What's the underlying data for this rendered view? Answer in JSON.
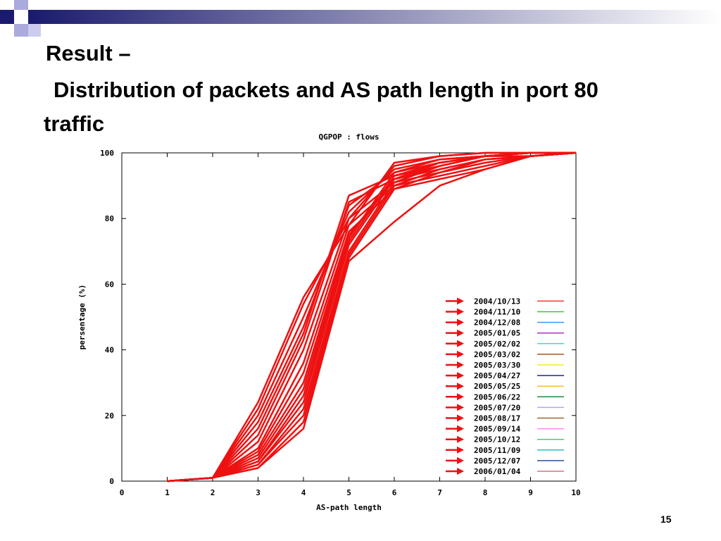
{
  "slide": {
    "title": [
      "Result –",
      "Distribution of packets and AS path length in port 80 traffic"
    ],
    "page_number": "15"
  },
  "chart_data": {
    "type": "line",
    "title": "QGPOP : flows",
    "x_label": "AS-path length",
    "y_label": "persentage (%)",
    "x": [
      1,
      2,
      3,
      4,
      5,
      6,
      7,
      8,
      9,
      10
    ],
    "xlim": [
      0,
      10
    ],
    "xticks": [
      0,
      1,
      2,
      3,
      4,
      5,
      6,
      7,
      8,
      9,
      10
    ],
    "ylim": [
      0,
      100
    ],
    "yticks": [
      0,
      20,
      40,
      60,
      80,
      100
    ],
    "grid": false,
    "legend": "lower right",
    "highlight_color": "#ee1111",
    "series": [
      {
        "name": "2004/10/13",
        "color": "#ff3333",
        "values": [
          0,
          1,
          24,
          56,
          78,
          97,
          99,
          100,
          100,
          100
        ]
      },
      {
        "name": "2004/11/10",
        "color": "#33cc33",
        "values": [
          0,
          1,
          22,
          54,
          80,
          96,
          99,
          100,
          100,
          100
        ]
      },
      {
        "name": "2004/12/08",
        "color": "#3399ff",
        "values": [
          0,
          1,
          20,
          50,
          82,
          95,
          98,
          99,
          100,
          100
        ]
      },
      {
        "name": "2005/01/05",
        "color": "#aa33cc",
        "values": [
          0,
          1,
          18,
          47,
          84,
          94,
          98,
          99,
          100,
          100
        ]
      },
      {
        "name": "2005/02/02",
        "color": "#33dddd",
        "values": [
          0,
          1,
          16,
          45,
          87,
          93,
          97,
          99,
          100,
          100
        ]
      },
      {
        "name": "2005/03/02",
        "color": "#aa5522",
        "values": [
          0,
          1,
          14,
          43,
          85,
          92,
          97,
          99,
          100,
          100
        ]
      },
      {
        "name": "2005/03/30",
        "color": "#eeee22",
        "values": [
          0,
          1,
          12,
          40,
          80,
          91,
          96,
          99,
          99,
          100
        ]
      },
      {
        "name": "2005/04/27",
        "color": "#2222aa",
        "values": [
          0,
          1,
          10,
          36,
          78,
          90,
          95,
          98,
          99,
          100
        ]
      },
      {
        "name": "2005/05/25",
        "color": "#ffbb33",
        "values": [
          0,
          1,
          9,
          33,
          76,
          89,
          94,
          98,
          99,
          100
        ]
      },
      {
        "name": "2005/06/22",
        "color": "#228844",
        "values": [
          0,
          1,
          8,
          30,
          75,
          92,
          96,
          99,
          100,
          100
        ]
      },
      {
        "name": "2005/07/20",
        "color": "#aaaaee",
        "values": [
          0,
          1,
          7,
          28,
          74,
          94,
          97,
          99,
          100,
          100
        ]
      },
      {
        "name": "2005/08/17",
        "color": "#996633",
        "values": [
          0,
          1,
          6,
          26,
          73,
          93,
          96,
          99,
          100,
          100
        ]
      },
      {
        "name": "2005/09/14",
        "color": "#ff88ee",
        "values": [
          0,
          1,
          6,
          24,
          72,
          92,
          95,
          98,
          99,
          100
        ]
      },
      {
        "name": "2005/10/12",
        "color": "#44cc77",
        "values": [
          0,
          1,
          5,
          22,
          70,
          91,
          94,
          97,
          99,
          100
        ]
      },
      {
        "name": "2005/11/09",
        "color": "#33bbbb",
        "values": [
          0,
          1,
          5,
          20,
          69,
          90,
          93,
          96,
          99,
          100
        ]
      },
      {
        "name": "2005/12/07",
        "color": "#225588",
        "values": [
          0,
          1,
          4,
          18,
          68,
          89,
          92,
          95,
          99,
          100
        ]
      },
      {
        "name": "2006/01/04",
        "color": "#cc7788",
        "values": [
          0,
          1,
          4,
          16,
          67,
          79,
          90,
          95,
          99,
          100
        ]
      }
    ]
  }
}
